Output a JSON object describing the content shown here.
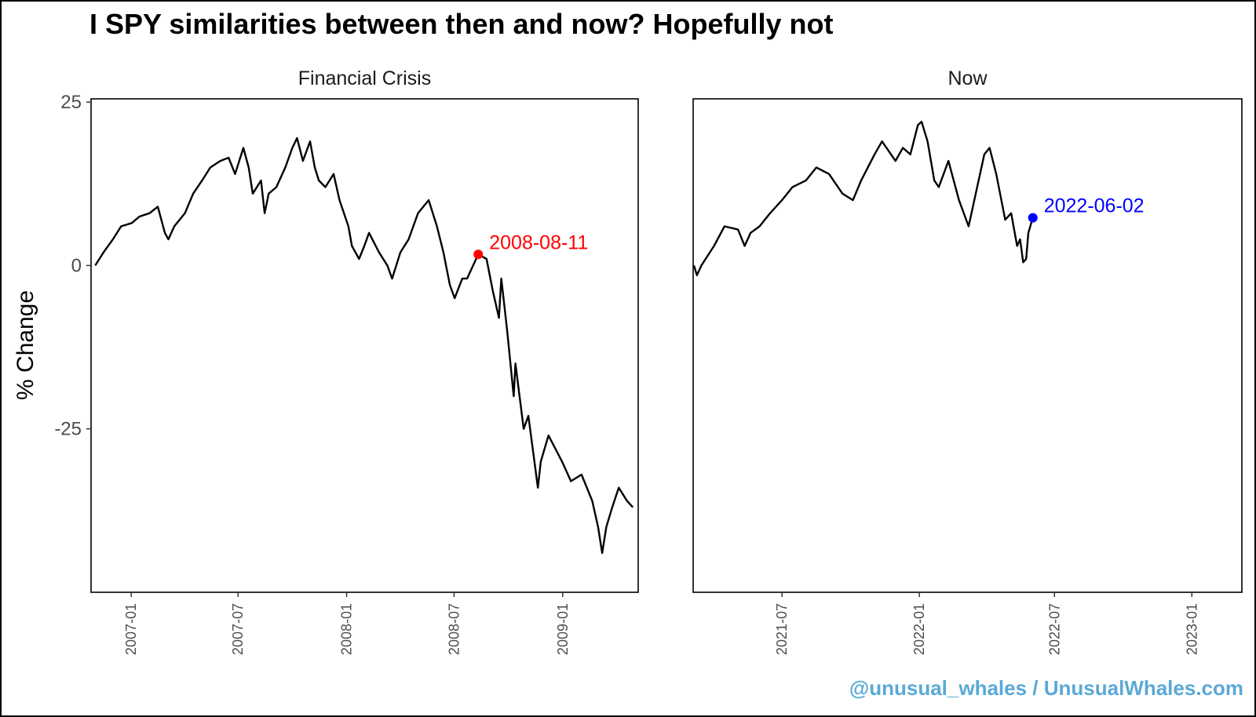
{
  "title": "I SPY similarities between then and now? Hopefully not",
  "watermark": "@unusual_whales / UnusualWhales.com",
  "chart_data": {
    "type": "line",
    "title": "I SPY similarities between then and now? Hopefully not",
    "ylabel": "% Change",
    "ylim": [
      -50,
      25.5
    ],
    "yticks": [
      25,
      0,
      -25
    ],
    "yticklabels": [
      "25",
      "0",
      "-25"
    ],
    "panels": [
      {
        "name": "Financial Crisis",
        "xlim": [
          "2006-10-25",
          "2009-05-09"
        ],
        "xticks": [
          "2007-01",
          "2007-07",
          "2008-01",
          "2008-07",
          "2009-01"
        ],
        "marker": {
          "date": "2008-08-11",
          "y": 1.7,
          "label": "2008-08-11",
          "color": "#ff0000"
        },
        "series": [
          {
            "x": [
              "2006-11-01",
              "2006-11-15",
              "2006-12-01",
              "2006-12-15",
              "2007-01-02",
              "2007-01-15",
              "2007-02-01",
              "2007-02-15",
              "2007-02-27",
              "2007-03-05",
              "2007-03-15",
              "2007-04-02",
              "2007-04-16",
              "2007-05-01",
              "2007-05-15",
              "2007-06-01",
              "2007-06-15",
              "2007-06-26",
              "2007-07-10",
              "2007-07-19",
              "2007-07-26",
              "2007-08-09",
              "2007-08-15",
              "2007-08-22",
              "2007-09-04",
              "2007-09-19",
              "2007-10-01",
              "2007-10-09",
              "2007-10-19",
              "2007-10-31",
              "2007-11-08",
              "2007-11-15",
              "2007-11-26",
              "2007-12-10",
              "2007-12-20",
              "2008-01-04",
              "2008-01-10",
              "2008-01-22",
              "2008-01-31",
              "2008-02-08",
              "2008-02-25",
              "2008-03-10",
              "2008-03-18",
              "2008-04-01",
              "2008-04-15",
              "2008-05-01",
              "2008-05-19",
              "2008-06-02",
              "2008-06-13",
              "2008-06-24",
              "2008-07-02",
              "2008-07-15",
              "2008-07-23",
              "2008-08-11",
              "2008-08-25",
              "2008-09-05",
              "2008-09-15",
              "2008-09-19",
              "2008-09-29",
              "2008-10-10",
              "2008-10-13",
              "2008-10-27",
              "2008-11-04",
              "2008-11-20",
              "2008-11-25",
              "2008-12-08",
              "2008-12-31",
              "2009-01-15",
              "2009-02-02",
              "2009-02-20",
              "2009-03-02",
              "2009-03-09",
              "2009-03-16",
              "2009-03-26",
              "2009-04-06",
              "2009-04-20",
              "2009-04-30"
            ],
            "y": [
              0,
              2,
              4,
              6,
              6.5,
              7.5,
              8,
              9,
              5,
              4,
              6,
              8,
              11,
              13,
              15,
              16,
              16.5,
              14,
              18,
              15,
              11,
              13,
              8,
              11,
              12,
              15,
              18,
              19.5,
              16,
              19,
              15,
              13,
              12,
              14,
              10,
              6,
              3,
              1,
              3,
              5,
              2,
              0,
              -2,
              2,
              4,
              8,
              10,
              6,
              2,
              -3,
              -5,
              -2,
              -2,
              1.7,
              1,
              -4,
              -8,
              -2,
              -10,
              -20,
              -15,
              -25,
              -23,
              -34,
              -30,
              -26,
              -30,
              -33,
              -32,
              -36,
              -40,
              -44,
              -40,
              -37,
              -34,
              -36,
              -37
            ]
          }
        ]
      },
      {
        "name": "Now",
        "xlim": [
          "2021-03-04",
          "2023-03-09"
        ],
        "xticks": [
          "2021-07",
          "2022-01",
          "2022-07",
          "2023-01"
        ],
        "marker": {
          "date": "2022-06-02",
          "y": 7.3,
          "label": "2022-06-02",
          "color": "#0000ff"
        },
        "series": [
          {
            "x": [
              "2021-03-05",
              "2021-03-09",
              "2021-03-15",
              "2021-04-01",
              "2021-04-15",
              "2021-05-03",
              "2021-05-12",
              "2021-05-20",
              "2021-06-01",
              "2021-06-15",
              "2021-07-01",
              "2021-07-15",
              "2021-08-02",
              "2021-08-16",
              "2021-09-02",
              "2021-09-20",
              "2021-10-04",
              "2021-10-15",
              "2021-11-02",
              "2021-11-12",
              "2021-11-30",
              "2021-12-10",
              "2021-12-20",
              "2021-12-30",
              "2022-01-04",
              "2022-01-12",
              "2022-01-21",
              "2022-01-27",
              "2022-02-09",
              "2022-02-23",
              "2022-03-08",
              "2022-03-29",
              "2022-04-05",
              "2022-04-14",
              "2022-04-26",
              "2022-05-04",
              "2022-05-12",
              "2022-05-16",
              "2022-05-20",
              "2022-05-24",
              "2022-05-27",
              "2022-06-02"
            ],
            "y": [
              0,
              -1.5,
              0,
              3,
              6,
              5.5,
              3,
              5,
              6,
              8,
              10,
              12,
              13,
              15,
              14,
              11,
              10,
              13,
              17,
              19,
              16,
              18,
              17,
              21.5,
              22,
              19,
              13,
              12,
              16,
              10,
              6,
              17,
              18,
              14,
              7,
              8,
              3,
              4,
              0.5,
              1,
              5,
              7.3
            ]
          }
        ]
      }
    ]
  }
}
